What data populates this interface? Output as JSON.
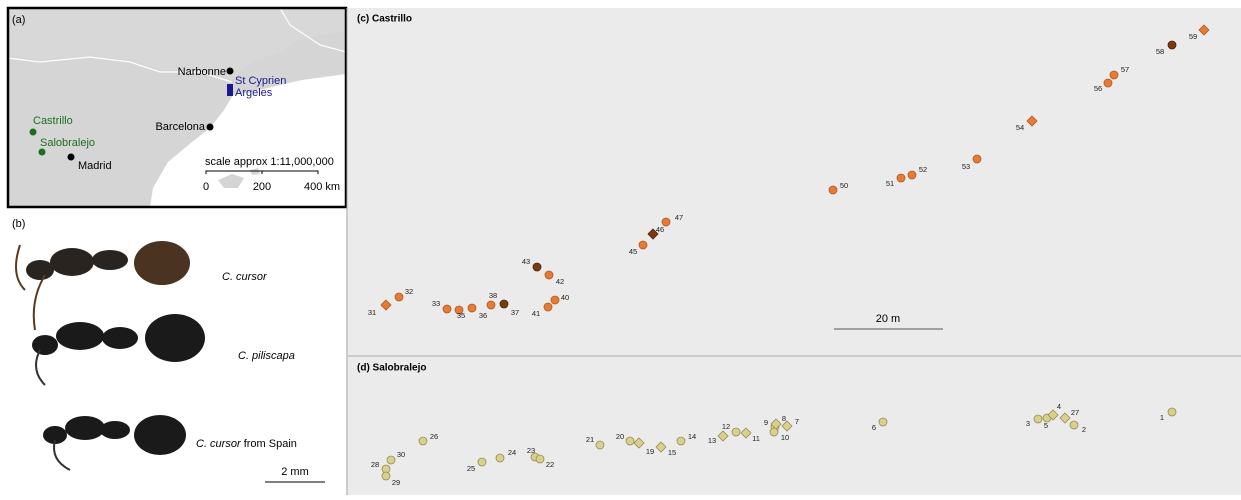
{
  "panel_a": {
    "label": "(a)",
    "places": {
      "narbonne": "Narbonne",
      "st_cyprien": "St Cyprien",
      "argeles": "Argeles",
      "barcelona": "Barcelona",
      "castrillo": "Castrillo",
      "salobralejo": "Salobralejo",
      "madrid": "Madrid"
    },
    "scale": {
      "title": "scale approx 1:11,000,000",
      "ticks": [
        "0",
        "200",
        "400 km"
      ]
    }
  },
  "panel_b": {
    "label": "(b)",
    "specimens": [
      {
        "species": "C. cursor",
        "suffix": ""
      },
      {
        "species": "C. piliscapa",
        "suffix": ""
      },
      {
        "species": "C. cursor",
        "suffix": "from Spain"
      }
    ],
    "scale": "2 mm"
  },
  "panel_c": {
    "title": "(c) Castrillo",
    "scale": "20 m",
    "points": [
      {
        "label": "31"
      },
      {
        "label": "32"
      },
      {
        "label": "33"
      },
      {
        "label": "35"
      },
      {
        "label": "36"
      },
      {
        "label": "38"
      },
      {
        "label": "37"
      },
      {
        "label": "43"
      },
      {
        "label": "42"
      },
      {
        "label": "40"
      },
      {
        "label": "41"
      },
      {
        "label": "45"
      },
      {
        "label": "46"
      },
      {
        "label": "47"
      },
      {
        "label": "50"
      },
      {
        "label": "51"
      },
      {
        "label": "52"
      },
      {
        "label": "53"
      },
      {
        "label": "54"
      },
      {
        "label": "56"
      },
      {
        "label": "57"
      },
      {
        "label": "58"
      },
      {
        "label": "59"
      }
    ]
  },
  "panel_d": {
    "title": "(d) Salobralejo",
    "points": [
      {
        "label": "28"
      },
      {
        "label": "29"
      },
      {
        "label": "30"
      },
      {
        "label": "26"
      },
      {
        "label": "25"
      },
      {
        "label": "24"
      },
      {
        "label": "23"
      },
      {
        "label": "22"
      },
      {
        "label": "21"
      },
      {
        "label": "20"
      },
      {
        "label": "19"
      },
      {
        "label": "15"
      },
      {
        "label": "14"
      },
      {
        "label": "13"
      },
      {
        "label": "12"
      },
      {
        "label": "11"
      },
      {
        "label": "9"
      },
      {
        "label": "8"
      },
      {
        "label": "7"
      },
      {
        "label": "10"
      },
      {
        "label": "6"
      },
      {
        "label": "3"
      },
      {
        "label": "5"
      },
      {
        "label": "4"
      },
      {
        "label": "27"
      },
      {
        "label": "2"
      },
      {
        "label": "1"
      }
    ]
  }
}
